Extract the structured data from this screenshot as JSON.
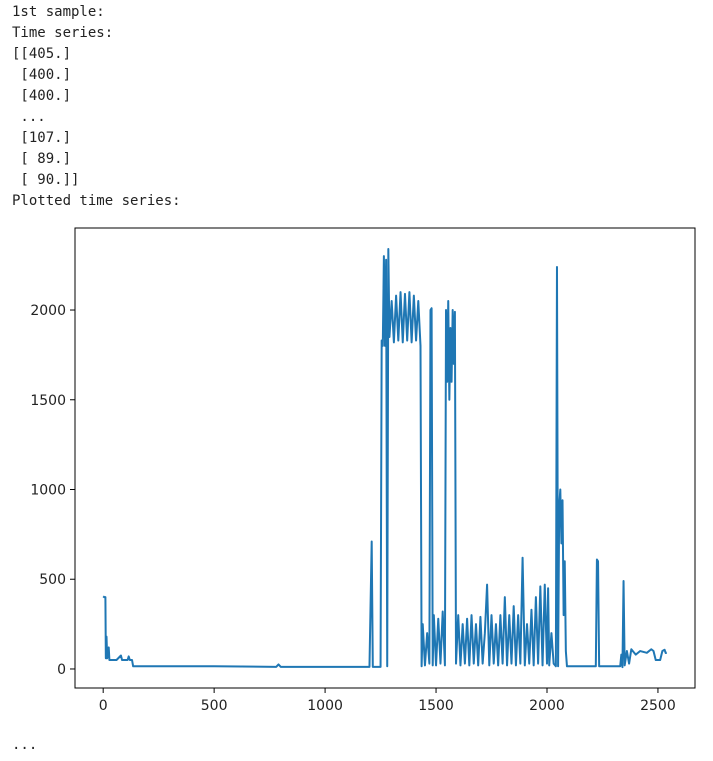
{
  "output_lines": [
    "1st sample:",
    "Time series:",
    "[[405.]",
    " [400.]",
    " [400.]",
    " ...",
    " [107.]",
    " [ 89.]",
    " [ 90.]]",
    "Plotted time series:"
  ],
  "chart_data": {
    "type": "line",
    "color": "#1f77b4",
    "x": [
      0,
      5,
      10,
      12,
      15,
      18,
      25,
      28,
      60,
      80,
      85,
      110,
      115,
      120,
      130,
      135,
      500,
      780,
      790,
      800,
      1200,
      1210,
      1215,
      1250,
      1255,
      1260,
      1265,
      1270,
      1275,
      1280,
      1285,
      1290,
      1300,
      1310,
      1320,
      1330,
      1340,
      1350,
      1360,
      1370,
      1380,
      1390,
      1400,
      1410,
      1420,
      1430,
      1435,
      1440,
      1450,
      1460,
      1470,
      1475,
      1480,
      1485,
      1490,
      1500,
      1510,
      1520,
      1530,
      1540,
      1545,
      1550,
      1555,
      1560,
      1565,
      1570,
      1575,
      1580,
      1585,
      1590,
      1600,
      1610,
      1620,
      1630,
      1640,
      1650,
      1660,
      1670,
      1680,
      1690,
      1700,
      1710,
      1720,
      1730,
      1740,
      1750,
      1760,
      1770,
      1780,
      1790,
      1800,
      1810,
      1820,
      1830,
      1840,
      1850,
      1860,
      1870,
      1880,
      1890,
      1900,
      1910,
      1920,
      1930,
      1940,
      1950,
      1960,
      1970,
      1980,
      1990,
      2000,
      2005,
      2010,
      2020,
      2030,
      2040,
      2045,
      2050,
      2055,
      2060,
      2065,
      2070,
      2075,
      2080,
      2085,
      2090,
      2220,
      2225,
      2230,
      2235,
      2330,
      2335,
      2340,
      2345,
      2350,
      2360,
      2370,
      2380,
      2400,
      2420,
      2450,
      2470,
      2480,
      2490,
      2500,
      2510,
      2520,
      2530,
      2535,
      2540
    ],
    "values": [
      405,
      400,
      400,
      60,
      180,
      60,
      120,
      50,
      50,
      75,
      50,
      50,
      70,
      50,
      50,
      15,
      15,
      12,
      25,
      12,
      12,
      710,
      12,
      12,
      1830,
      1800,
      2300,
      1800,
      2280,
      15,
      2340,
      1850,
      2050,
      1820,
      2080,
      1830,
      2100,
      1820,
      2090,
      1830,
      2100,
      1820,
      2080,
      1830,
      2050,
      1800,
      15,
      250,
      20,
      200,
      30,
      2000,
      2010,
      20,
      300,
      20,
      280,
      30,
      320,
      20,
      2000,
      1600,
      2050,
      1500,
      1900,
      1600,
      2000,
      1700,
      1990,
      30,
      300,
      20,
      250,
      30,
      280,
      20,
      300,
      30,
      250,
      20,
      290,
      30,
      200,
      470,
      20,
      300,
      30,
      250,
      20,
      300,
      30,
      400,
      20,
      300,
      30,
      350,
      20,
      300,
      30,
      620,
      20,
      250,
      30,
      330,
      20,
      400,
      30,
      460,
      20,
      470,
      30,
      450,
      20,
      200,
      30,
      15,
      2240,
      15,
      900,
      1000,
      700,
      940,
      300,
      600,
      100,
      15,
      15,
      610,
      600,
      15,
      15,
      80,
      10,
      490,
      20,
      100,
      30,
      110,
      80,
      100,
      90,
      110,
      100,
      50,
      50,
      50,
      100,
      107,
      89,
      90
    ],
    "xlim": [
      -127,
      2667
    ],
    "ylim": [
      -106,
      2457
    ],
    "xticks": [
      0,
      500,
      1000,
      1500,
      2000,
      2500
    ],
    "yticks": [
      0,
      500,
      1000,
      1500,
      2000
    ]
  },
  "footer": "..."
}
